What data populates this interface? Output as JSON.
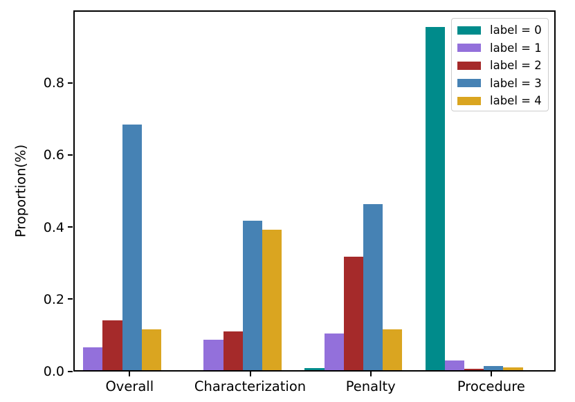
{
  "figure": {
    "background": "#ffffff",
    "axis_color": "#000000"
  },
  "chart_data": {
    "type": "bar",
    "title": "",
    "xlabel": "",
    "ylabel": "Proportion(%)",
    "categories": [
      "Overall",
      "Characterization",
      "Penalty",
      "Procedure"
    ],
    "series": [
      {
        "name": "label = 0",
        "color": "#008b8b",
        "values": [
          0.0,
          0.0,
          0.006,
          0.952
        ]
      },
      {
        "name": "label = 1",
        "color": "#9370db",
        "values": [
          0.064,
          0.085,
          0.101,
          0.026
        ]
      },
      {
        "name": "label = 2",
        "color": "#a52a2a",
        "values": [
          0.138,
          0.108,
          0.314,
          0.004
        ]
      },
      {
        "name": "label = 3",
        "color": "#4682b4",
        "values": [
          0.682,
          0.414,
          0.46,
          0.012
        ]
      },
      {
        "name": "label = 4",
        "color": "#daa520",
        "values": [
          0.114,
          0.39,
          0.114,
          0.008
        ]
      }
    ],
    "ytick_labels": [
      "0.0",
      "0.2",
      "0.4",
      "0.6",
      "0.8"
    ],
    "ytick_values": [
      0.0,
      0.2,
      0.4,
      0.6,
      0.8
    ],
    "ylim": [
      0.0,
      1.0
    ],
    "grid": false,
    "legend_position": "upper right"
  }
}
